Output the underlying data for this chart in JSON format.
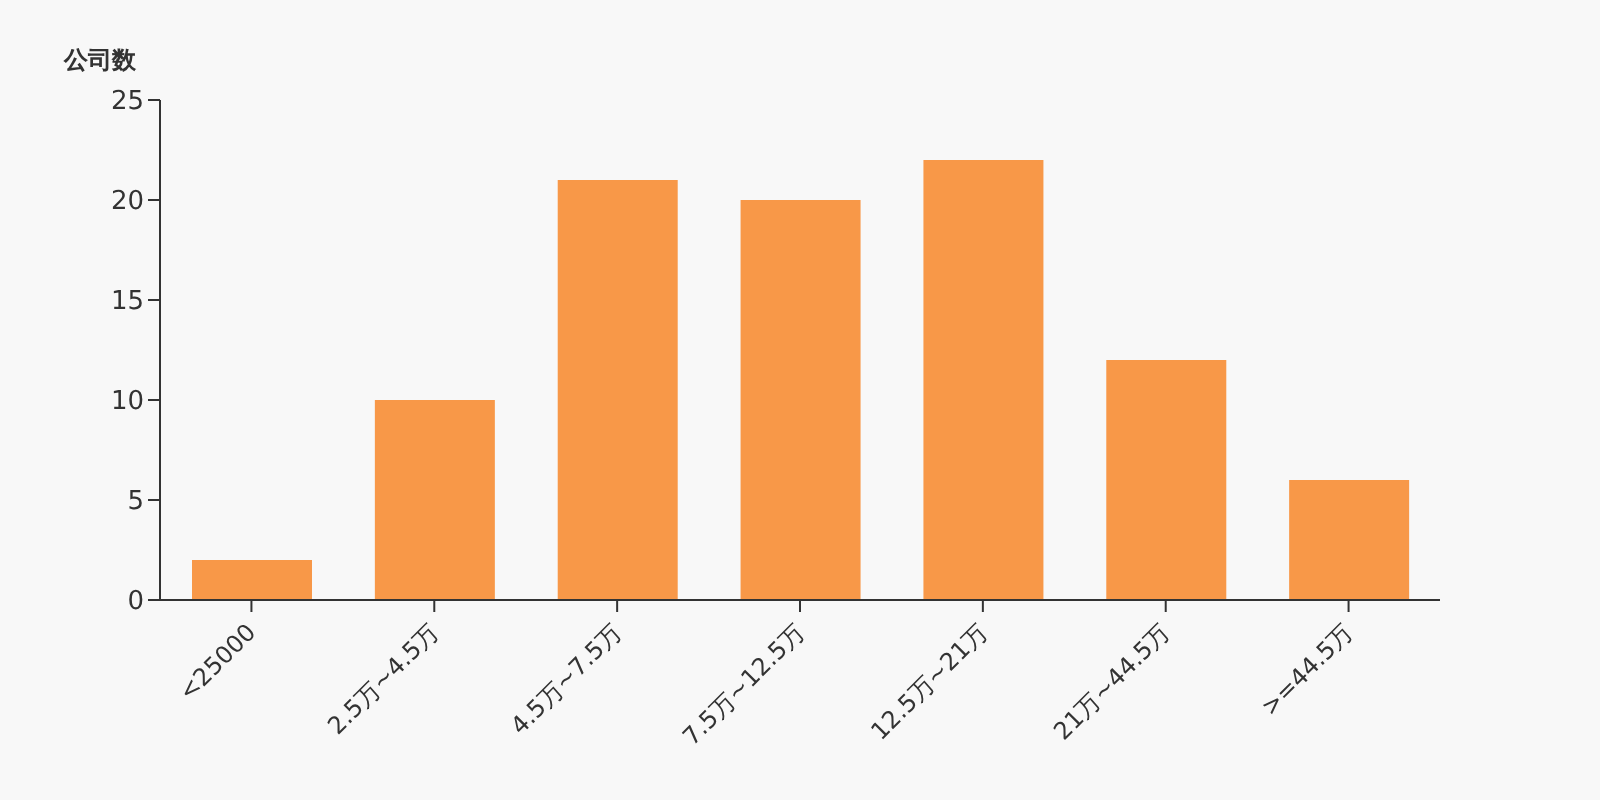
{
  "chart_data": {
    "type": "bar",
    "ylabel": "公司数",
    "categories": [
      "<25000",
      "2.5万~4.5万",
      "4.5万~7.5万",
      "7.5万~12.5万",
      "12.5万~21万",
      "21万~44.5万",
      ">=44.5万"
    ],
    "values": [
      2,
      10,
      21,
      20,
      22,
      12,
      6
    ],
    "color": "#f89848",
    "ylim": [
      0,
      25
    ],
    "yticks": [
      0,
      5,
      10,
      15,
      20,
      25
    ],
    "grid": false,
    "legend": false
  }
}
